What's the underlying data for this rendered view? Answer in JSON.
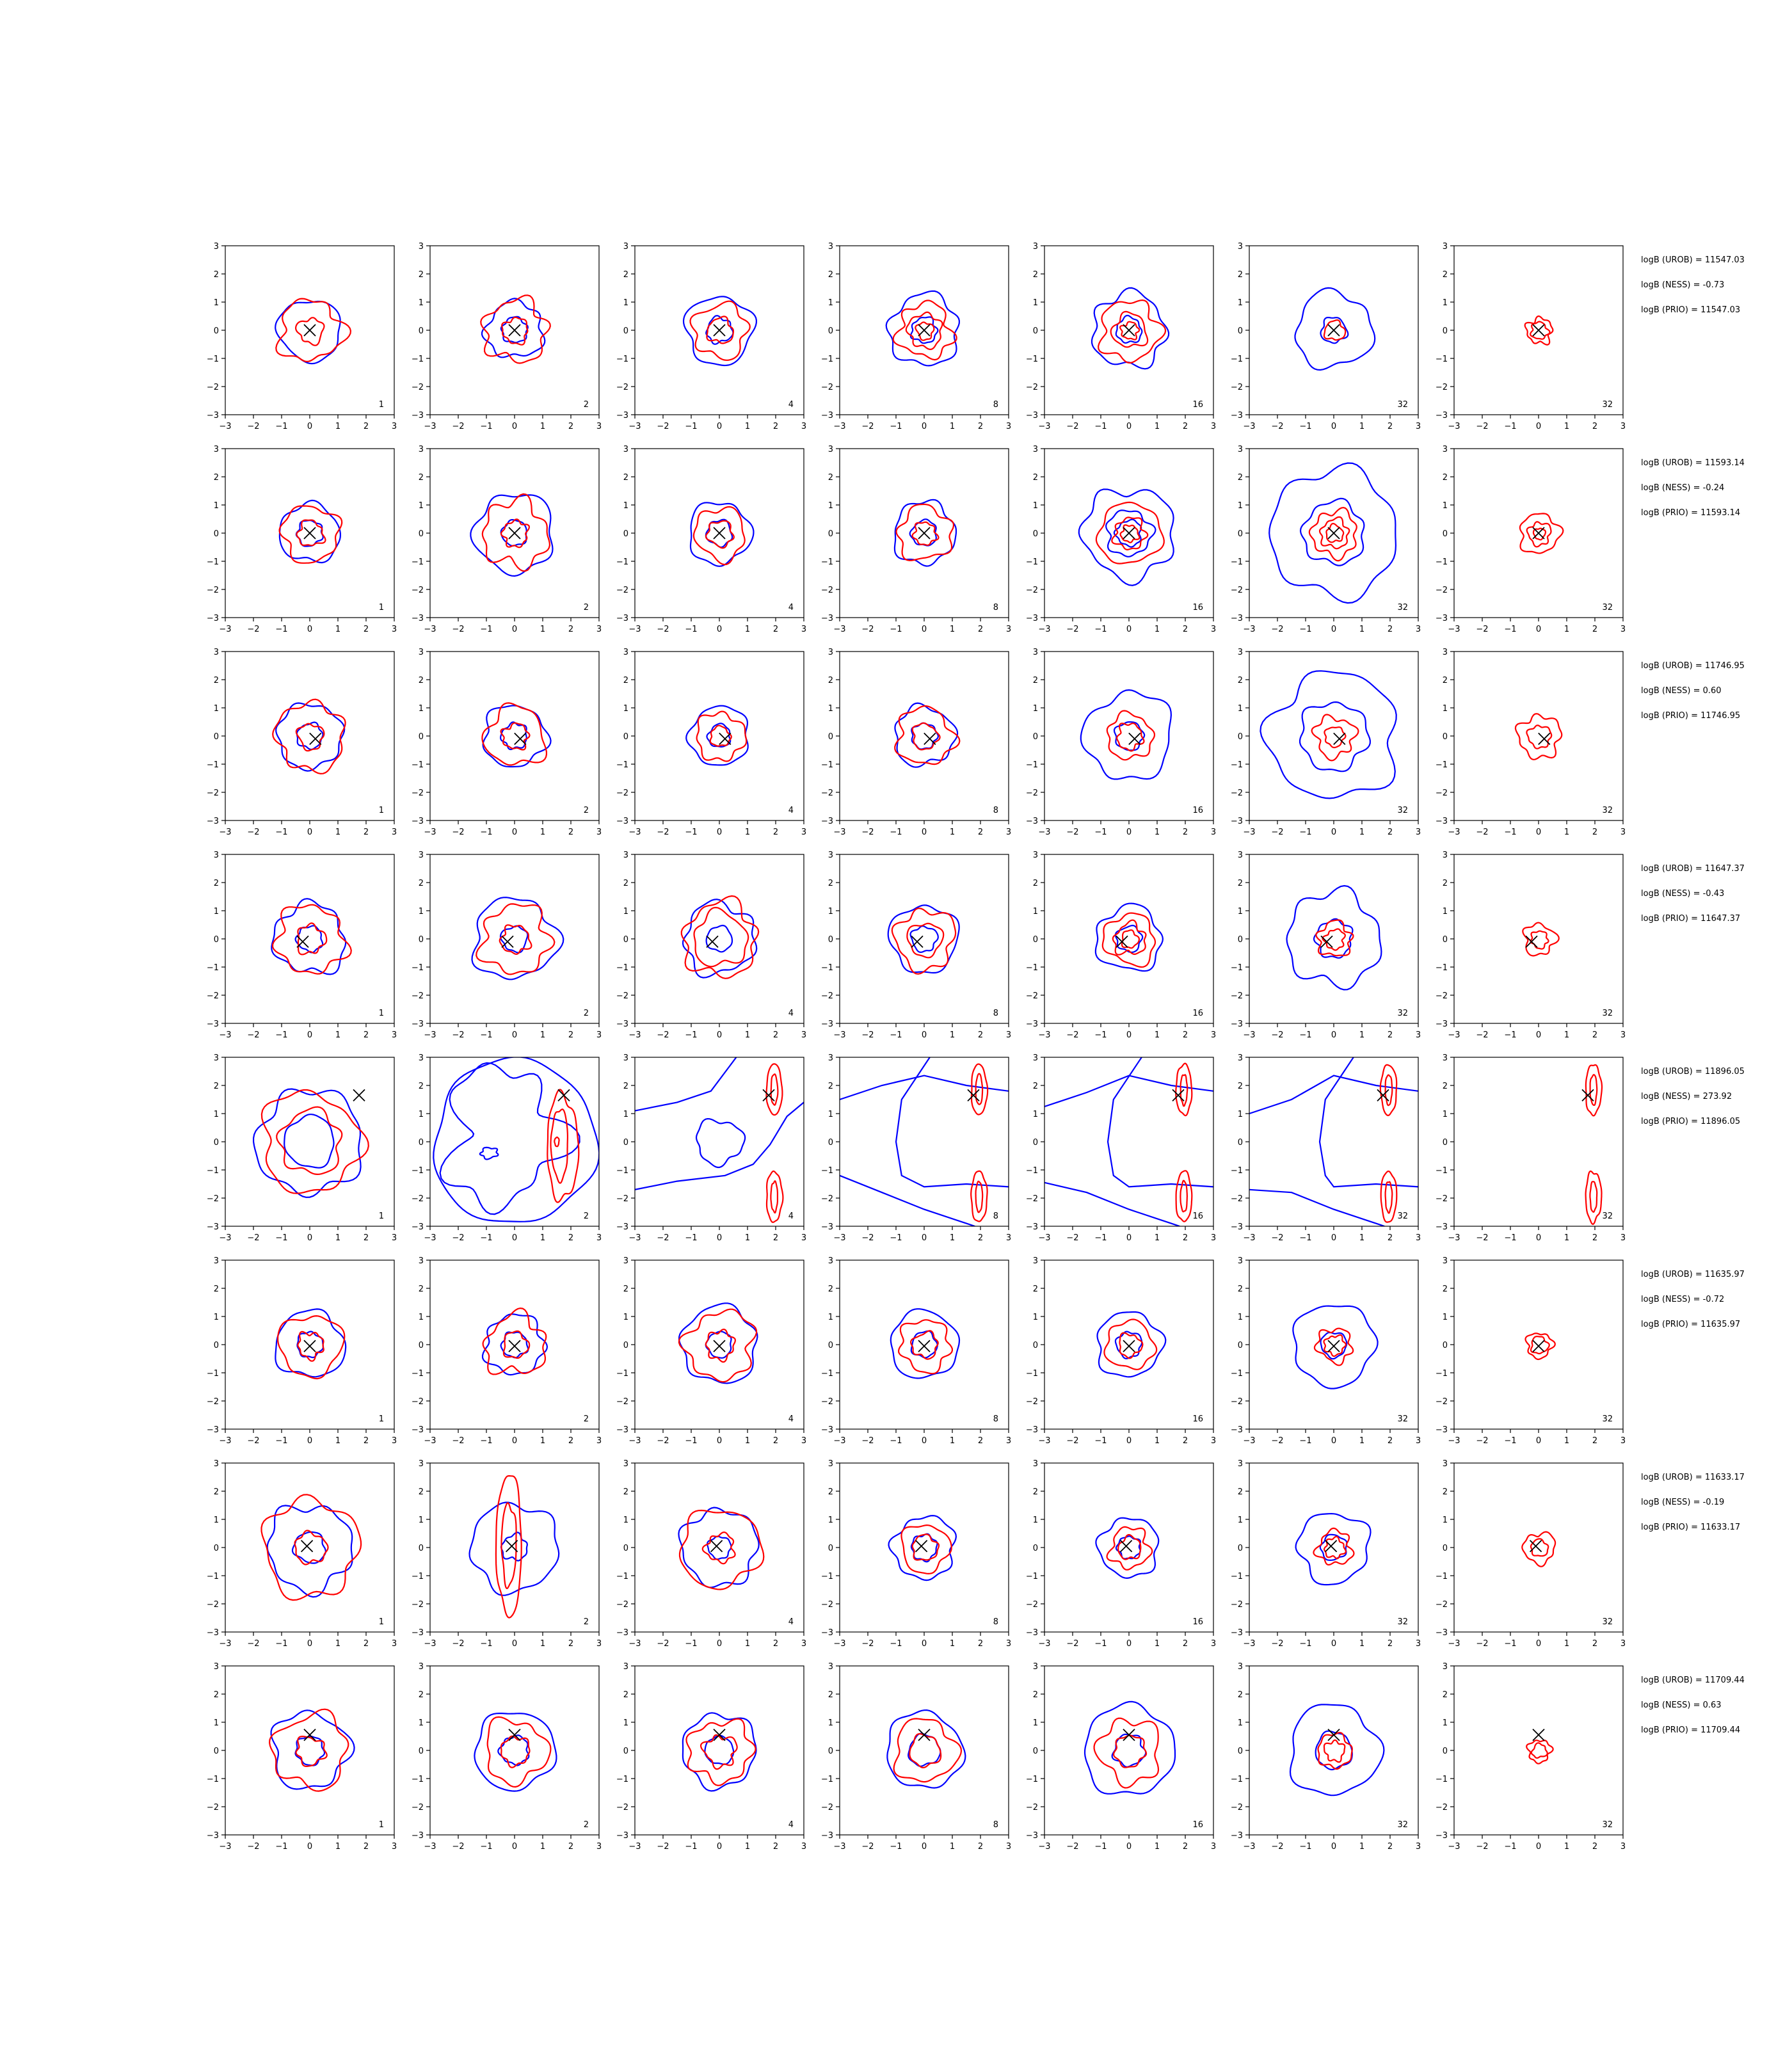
{
  "chart_data": {
    "type": "contour",
    "layout": "grid",
    "rows": 8,
    "cols": 7,
    "xlim": [
      -3,
      3
    ],
    "ylim": [
      -3,
      3
    ],
    "xticks": [
      -3,
      -2,
      -1,
      0,
      1,
      2,
      3
    ],
    "yticks": [
      -3,
      -2,
      -1,
      0,
      1,
      2,
      3
    ],
    "tick_labels": [
      "−3",
      "−2",
      "−1",
      "0",
      "1",
      "2",
      "3"
    ],
    "column_k": [
      "1",
      "2",
      "4",
      "8",
      "16",
      "32",
      "32"
    ],
    "series_colors": {
      "blue": "#0000ff",
      "red": "#ff0000",
      "marker": "#000000"
    },
    "rows_data": [
      {
        "marker": [
          0.0,
          0.0
        ],
        "stats": [
          "logB (UROB) = 11547.03",
          "logB (NESS) = -0.73",
          "logB (PRIO) = 11547.03"
        ],
        "panels": [
          {
            "blue": [
              1.1
            ],
            "red": [
              1.1,
              0.45
            ]
          },
          {
            "blue": [
              1.0,
              0.45
            ],
            "red": [
              1.1,
              0.45
            ]
          },
          {
            "blue": [
              1.2,
              0.45
            ],
            "red": [
              0.95,
              0.45
            ]
          },
          {
            "blue": [
              1.25,
              0.45
            ],
            "red": [
              0.95,
              0.6,
              0.3
            ]
          },
          {
            "blue": [
              1.3,
              0.45
            ],
            "red": [
              1.05,
              0.6,
              0.3
            ]
          },
          {
            "blue": [
              1.35,
              0.45
            ],
            "red": [
              0.35
            ]
          },
          {
            "blue": [],
            "red": [
              0.45,
              0.3
            ]
          }
        ]
      },
      {
        "marker": [
          0.0,
          0.0
        ],
        "stats": [
          "logB (UROB) = 11593.14",
          "logB (NESS) = -0.24",
          "logB (PRIO) = 11593.14"
        ],
        "panels": [
          {
            "blue": [
              1.05,
              0.45
            ],
            "red": [
              1.0,
              0.45
            ]
          },
          {
            "blue": [
              1.4,
              0.45
            ],
            "red": [
              1.15,
              0.45
            ]
          },
          {
            "blue": [
              1.1,
              0.45
            ],
            "red": [
              0.9,
              0.45
            ]
          },
          {
            "blue": [
              1.1,
              0.45
            ],
            "red": [
              0.95,
              0.4
            ]
          },
          {
            "blue": [
              1.6,
              0.8,
              0.45
            ],
            "red": [
              1.1,
              0.55,
              0.3
            ]
          },
          {
            "blue": [
              2.25,
              1.1
            ],
            "red": [
              0.8,
              0.5,
              0.3
            ]
          },
          {
            "blue": [],
            "red": [
              0.7,
              0.4,
              0.2
            ]
          }
        ]
      },
      {
        "marker": [
          0.2,
          -0.1
        ],
        "stats": [
          "logB (UROB) = 11746.95",
          "logB (NESS) = 0.60",
          "logB (PRIO) = 11746.95"
        ],
        "panels": [
          {
            "blue": [
              1.15,
              0.45
            ],
            "red": [
              1.2,
              0.45
            ]
          },
          {
            "blue": [
              1.1,
              0.45
            ],
            "red": [
              1.05,
              0.45
            ]
          },
          {
            "blue": [
              1.05,
              0.4
            ],
            "red": [
              0.85,
              0.35
            ]
          },
          {
            "blue": [
              1.05,
              0.45
            ],
            "red": [
              1.0,
              0.45
            ]
          },
          {
            "blue": [
              1.55,
              0.5
            ],
            "red": [
              0.8,
              0.45
            ]
          },
          {
            "blue": [
              2.25,
              1.2
            ],
            "red": [
              0.7,
              0.35
            ]
          },
          {
            "blue": [],
            "red": [
              0.75,
              0.4
            ]
          }
        ]
      },
      {
        "marker": [
          -0.25,
          -0.1
        ],
        "stats": [
          "logB (UROB) = 11647.37",
          "logB (NESS) = -0.43",
          "logB (PRIO) = 11647.37"
        ],
        "panels": [
          {
            "blue": [
              1.25,
              0.45
            ],
            "red": [
              1.2,
              0.5
            ]
          },
          {
            "blue": [
              1.45,
              0.45
            ],
            "red": [
              1.2,
              0.5
            ]
          },
          {
            "blue": [
              1.25,
              0.45
            ],
            "red": [
              1.3,
              0.95
            ]
          },
          {
            "blue": [
              1.2,
              0.45
            ],
            "red": [
              1.05,
              0.6
            ]
          },
          {
            "blue": [
              1.15,
              0.45
            ],
            "red": [
              0.9,
              0.55,
              0.3
            ]
          },
          {
            "blue": [
              1.65,
              0.65
            ],
            "red": [
              0.6,
              0.35
            ]
          },
          {
            "blue": [],
            "red": [
              0.55,
              0.3
            ]
          }
        ]
      },
      {
        "marker": [
          1.75,
          1.65
        ],
        "stats": [
          "logB (UROB) = 11896.05",
          "logB (NESS) = 273.92",
          "logB (PRIO) = 11896.05"
        ],
        "panels": [
          {
            "blue": [
              1.85,
              0.9
            ],
            "red": [
              1.75,
              1.1
            ]
          },
          {
            "blue": [],
            "red": []
          },
          {
            "blue": [],
            "red": []
          },
          {
            "blue": [],
            "red": []
          },
          {
            "blue": [],
            "red": []
          },
          {
            "blue": [],
            "red": []
          },
          {
            "blue": [],
            "red": []
          }
        ]
      },
      {
        "marker": [
          0.0,
          -0.05
        ],
        "stats": [
          "logB (UROB) = 11635.97",
          "logB (NESS) = -0.72",
          "logB (PRIO) = 11635.97"
        ],
        "panels": [
          {
            "blue": [
              1.2,
              0.45
            ],
            "red": [
              1.1,
              0.45
            ]
          },
          {
            "blue": [
              1.05,
              0.45
            ],
            "red": [
              1.05,
              0.45
            ]
          },
          {
            "blue": [
              1.35,
              0.45
            ],
            "red": [
              1.2,
              0.5
            ]
          },
          {
            "blue": [
              1.2,
              0.45
            ],
            "red": [
              0.9,
              0.45
            ]
          },
          {
            "blue": [
              1.15,
              0.45
            ],
            "red": [
              0.85,
              0.4
            ]
          },
          {
            "blue": [
              1.45,
              0.45
            ],
            "red": [
              0.6,
              0.35
            ]
          },
          {
            "blue": [],
            "red": [
              0.45,
              0.3
            ]
          }
        ]
      },
      {
        "marker": [
          -0.1,
          0.05
        ],
        "stats": [
          "logB (UROB) = 11633.17",
          "logB (NESS) = -0.19",
          "logB (PRIO) = 11633.17"
        ],
        "panels": [
          {
            "blue": [
              1.5,
              0.55
            ],
            "red": [
              1.7,
              0.55
            ]
          },
          {
            "blue": [
              1.55,
              0.45
            ],
            "red": []
          },
          {
            "blue": [
              1.35,
              0.4
            ],
            "red": [
              1.4,
              0.5
            ]
          },
          {
            "blue": [
              1.1,
              0.45
            ],
            "red": [
              0.85,
              0.45
            ]
          },
          {
            "blue": [
              1.05,
              0.4
            ],
            "red": [
              0.7,
              0.4
            ]
          },
          {
            "blue": [
              1.25,
              0.45
            ],
            "red": [
              0.6,
              0.35
            ]
          },
          {
            "blue": [],
            "red": [
              0.55,
              0.3
            ]
          }
        ]
      },
      {
        "marker": [
          0.0,
          0.55
        ],
        "stats": [
          "logB (UROB) = 11709.44",
          "logB (NESS) = 0.63",
          "logB (PRIO) = 11709.44"
        ],
        "panels": [
          {
            "blue": [
              1.35,
              0.5
            ],
            "red": [
              1.3,
              0.5
            ]
          },
          {
            "blue": [
              1.4,
              0.5
            ],
            "red": [
              1.1,
              0.5
            ]
          },
          {
            "blue": [
              1.3,
              0.5
            ],
            "red": [
              1.1,
              0.55
            ]
          },
          {
            "blue": [
              1.35,
              0.55
            ],
            "red": [
              1.1,
              0.55
            ]
          },
          {
            "blue": [
              1.6,
              0.55
            ],
            "red": [
              1.1,
              0.55
            ]
          },
          {
            "blue": [
              1.6,
              0.65
            ],
            "red": [
              0.6,
              0.35
            ]
          },
          {
            "blue": [],
            "red": [
              0.4,
              0.25
            ]
          }
        ]
      }
    ]
  }
}
